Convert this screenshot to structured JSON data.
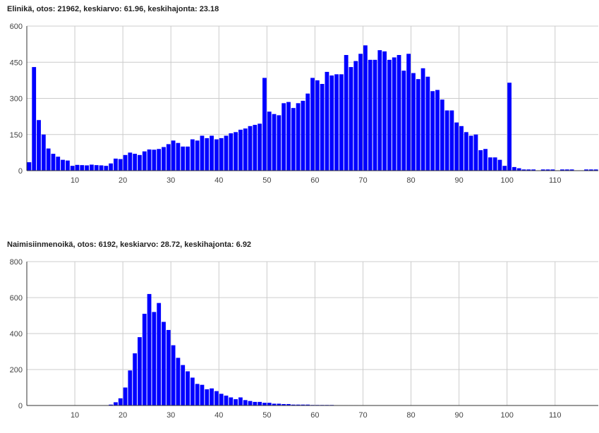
{
  "colors": {
    "bar": "#0000ff",
    "grid": "#cccccc",
    "axis": "#333333"
  },
  "chart_data": [
    {
      "type": "bar",
      "title": "Elinikä, otos: 21962, keskiarvo: 61.96, keskihajonta: 23.18",
      "xlabel": "",
      "ylabel": "",
      "xlim": [
        0,
        119
      ],
      "ylim": [
        0,
        600
      ],
      "x_ticks": [
        10,
        20,
        30,
        40,
        50,
        60,
        70,
        80,
        90,
        100,
        110
      ],
      "y_ticks": [
        0,
        150,
        300,
        450,
        600
      ],
      "grid": true,
      "x": [
        0,
        1,
        2,
        3,
        4,
        5,
        6,
        7,
        8,
        9,
        10,
        11,
        12,
        13,
        14,
        15,
        16,
        17,
        18,
        19,
        20,
        21,
        22,
        23,
        24,
        25,
        26,
        27,
        28,
        29,
        30,
        31,
        32,
        33,
        34,
        35,
        36,
        37,
        38,
        39,
        40,
        41,
        42,
        43,
        44,
        45,
        46,
        47,
        48,
        49,
        50,
        51,
        52,
        53,
        54,
        55,
        56,
        57,
        58,
        59,
        60,
        61,
        62,
        63,
        64,
        65,
        66,
        67,
        68,
        69,
        70,
        71,
        72,
        73,
        74,
        75,
        76,
        77,
        78,
        79,
        80,
        81,
        82,
        83,
        84,
        85,
        86,
        87,
        88,
        89,
        90,
        91,
        92,
        93,
        94,
        95,
        96,
        97,
        98,
        99,
        100,
        101,
        102,
        103,
        104,
        105,
        106,
        107,
        108,
        109,
        110,
        111,
        112,
        113,
        114,
        115,
        116,
        117,
        118
      ],
      "values": [
        35,
        430,
        210,
        150,
        92,
        70,
        58,
        45,
        42,
        20,
        24,
        23,
        22,
        25,
        23,
        22,
        20,
        30,
        50,
        48,
        65,
        75,
        70,
        65,
        80,
        88,
        87,
        90,
        98,
        110,
        125,
        115,
        100,
        100,
        130,
        125,
        145,
        135,
        145,
        130,
        135,
        145,
        155,
        160,
        170,
        175,
        185,
        190,
        195,
        385,
        245,
        235,
        230,
        280,
        285,
        260,
        280,
        290,
        320,
        385,
        375,
        360,
        410,
        395,
        400,
        400,
        480,
        430,
        455,
        485,
        520,
        460,
        460,
        500,
        495,
        460,
        470,
        480,
        415,
        485,
        405,
        380,
        425,
        390,
        330,
        335,
        295,
        250,
        250,
        200,
        185,
        160,
        145,
        150,
        85,
        90,
        55,
        55,
        45,
        20,
        365,
        15,
        10,
        5,
        5,
        5,
        0,
        5,
        5,
        5,
        0,
        5,
        5,
        5,
        0,
        0,
        5,
        5,
        5
      ]
    },
    {
      "type": "bar",
      "title": "Naimisiinmenoikä, otos: 6192, keskiarvo: 28.72, keskihajonta: 6.92",
      "xlabel": "",
      "ylabel": "",
      "xlim": [
        0,
        119
      ],
      "ylim": [
        0,
        800
      ],
      "x_ticks": [
        10,
        20,
        30,
        40,
        50,
        60,
        70,
        80,
        90,
        100,
        110
      ],
      "y_ticks": [
        0,
        200,
        400,
        600,
        800
      ],
      "grid": true,
      "x": [
        0,
        1,
        2,
        3,
        4,
        5,
        6,
        7,
        8,
        9,
        10,
        11,
        12,
        13,
        14,
        15,
        16,
        17,
        18,
        19,
        20,
        21,
        22,
        23,
        24,
        25,
        26,
        27,
        28,
        29,
        30,
        31,
        32,
        33,
        34,
        35,
        36,
        37,
        38,
        39,
        40,
        41,
        42,
        43,
        44,
        45,
        46,
        47,
        48,
        49,
        50,
        51,
        52,
        53,
        54,
        55,
        56,
        57,
        58,
        59,
        60,
        61,
        62,
        63,
        64,
        65,
        66,
        67,
        68,
        69,
        70,
        71,
        72,
        73,
        74,
        75,
        76,
        77,
        78,
        79,
        80,
        81,
        82,
        83,
        84,
        85,
        86,
        87,
        88,
        89,
        90,
        91,
        92,
        93,
        94,
        95,
        96,
        97,
        98,
        99,
        100,
        101,
        102,
        103,
        104,
        105,
        106,
        107,
        108,
        109,
        110,
        111,
        112,
        113,
        114,
        115,
        116,
        117,
        118
      ],
      "values": [
        0,
        0,
        0,
        0,
        0,
        0,
        0,
        0,
        0,
        0,
        0,
        0,
        0,
        0,
        0,
        0,
        2,
        5,
        18,
        40,
        100,
        195,
        290,
        380,
        510,
        620,
        520,
        570,
        465,
        420,
        335,
        265,
        225,
        190,
        155,
        120,
        115,
        90,
        95,
        80,
        65,
        55,
        45,
        35,
        45,
        30,
        25,
        20,
        20,
        15,
        15,
        10,
        10,
        8,
        8,
        5,
        5,
        5,
        5,
        3,
        3,
        3,
        3,
        3,
        2,
        2,
        2,
        2,
        2,
        1,
        1,
        1,
        1,
        1,
        1,
        1,
        1,
        1,
        1,
        1,
        1,
        1,
        1,
        1,
        1,
        1,
        1,
        1,
        1,
        1,
        1,
        1,
        1,
        1,
        1,
        1,
        1,
        1,
        1,
        1,
        1,
        1,
        1,
        1,
        1,
        1,
        1,
        1,
        1,
        1,
        1,
        1,
        1,
        1,
        1,
        1,
        1,
        1,
        1
      ]
    }
  ]
}
